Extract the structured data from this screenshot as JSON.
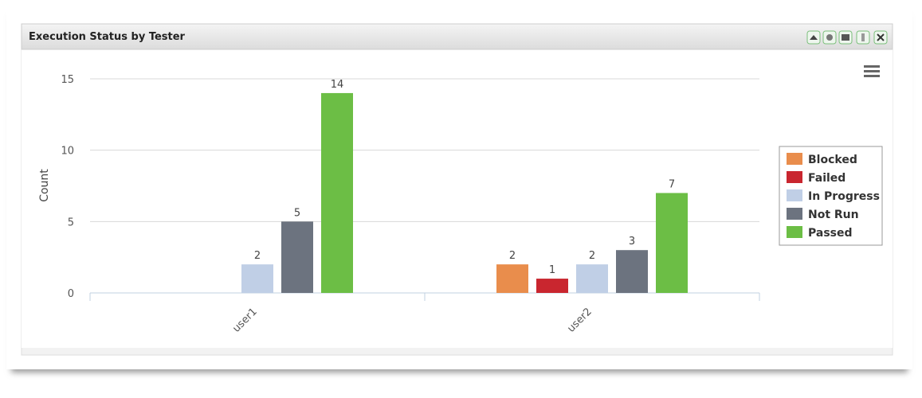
{
  "panel": {
    "title": "Execution Status by Tester"
  },
  "chart_data": {
    "type": "bar",
    "ylabel": "Count",
    "categories": [
      "user1",
      "user2"
    ],
    "series": [
      {
        "name": "Blocked",
        "color": "#e98d4c",
        "values": [
          null,
          2
        ]
      },
      {
        "name": "Failed",
        "color": "#c9262f",
        "values": [
          null,
          1
        ]
      },
      {
        "name": "In Progress",
        "color": "#c0cfe6",
        "values": [
          2,
          2
        ]
      },
      {
        "name": "Not Run",
        "color": "#6c737f",
        "values": [
          5,
          3
        ]
      },
      {
        "name": "Passed",
        "color": "#6cbe45",
        "values": [
          14,
          7
        ]
      }
    ],
    "ylim": [
      0,
      15
    ],
    "yticks": [
      0,
      5,
      10,
      15
    ],
    "grid": true,
    "legend": "right"
  }
}
